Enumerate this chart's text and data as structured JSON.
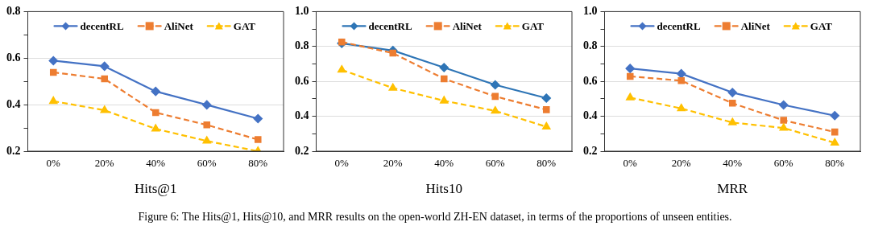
{
  "chart_data": [
    {
      "type": "line",
      "xlabel": "Hits@1",
      "categories": [
        "0%",
        "20%",
        "40%",
        "60%",
        "80%"
      ],
      "series": [
        {
          "name": "decentRL",
          "color": "#4472c4",
          "marker": "diamond",
          "line_style": "solid",
          "values": [
            0.589,
            0.565,
            0.457,
            0.399,
            0.34
          ]
        },
        {
          "name": "AliNet",
          "color": "#ed7d31",
          "marker": "square",
          "line_style": "dashed",
          "values": [
            0.539,
            0.511,
            0.366,
            0.313,
            0.25
          ]
        },
        {
          "name": "GAT",
          "color": "#ffc000",
          "marker": "triangle",
          "line_style": "dashed",
          "values": [
            0.415,
            0.376,
            0.296,
            0.244,
            0.2
          ]
        }
      ],
      "ylim": [
        0.2,
        0.8
      ],
      "yticks": [
        0.2,
        {
          "value": 0.3,
          "label": null
        },
        0.4,
        {
          "value": 0.5,
          "label": null
        },
        0.6,
        {
          "value": 0.7,
          "label": null
        },
        0.8
      ],
      "grid": "y",
      "legend": "top"
    },
    {
      "type": "line",
      "xlabel": "Hits10",
      "categories": [
        "0%",
        "20%",
        "40%",
        "60%",
        "80%"
      ],
      "series": [
        {
          "name": "decentRL",
          "color": "#2e75b6",
          "marker": "diamond",
          "line_style": "solid",
          "values": [
            0.818,
            0.777,
            0.679,
            0.58,
            0.504
          ]
        },
        {
          "name": "AliNet",
          "color": "#ed7d31",
          "marker": "square",
          "line_style": "dashed",
          "values": [
            0.826,
            0.762,
            0.615,
            0.514,
            0.438
          ]
        },
        {
          "name": "GAT",
          "color": "#ffc000",
          "marker": "triangle",
          "line_style": "dashed",
          "values": [
            0.666,
            0.562,
            0.489,
            0.431,
            0.34
          ]
        }
      ],
      "ylim": [
        0.2,
        1.0
      ],
      "yticks": [
        0.2,
        {
          "value": 0.3,
          "label": null
        },
        0.4,
        {
          "value": 0.5,
          "label": null
        },
        0.6,
        {
          "value": 0.7,
          "label": null
        },
        0.8,
        {
          "value": 0.9,
          "label": null
        },
        {
          "value": 1.0,
          "label": "1.0"
        }
      ],
      "grid": "y",
      "legend": "top"
    },
    {
      "type": "line",
      "xlabel": "MRR",
      "categories": [
        "0%",
        "20%",
        "40%",
        "60%",
        "80%"
      ],
      "series": [
        {
          "name": "decentRL",
          "color": "#4472c4",
          "marker": "diamond",
          "line_style": "solid",
          "values": [
            0.674,
            0.644,
            0.536,
            0.465,
            0.404
          ]
        },
        {
          "name": "AliNet",
          "color": "#ed7d31",
          "marker": "square",
          "line_style": "dashed",
          "values": [
            0.629,
            0.604,
            0.475,
            0.377,
            0.31
          ]
        },
        {
          "name": "GAT",
          "color": "#ffc000",
          "marker": "triangle",
          "line_style": "dashed",
          "values": [
            0.507,
            0.445,
            0.364,
            0.333,
            0.248
          ]
        }
      ],
      "ylim": [
        0.2,
        1.0
      ],
      "yticks": [
        0.2,
        {
          "value": 0.3,
          "label": null
        },
        0.4,
        {
          "value": 0.5,
          "label": null
        },
        0.6,
        {
          "value": 0.7,
          "label": null
        },
        0.8,
        {
          "value": 0.9,
          "label": null
        },
        {
          "value": 1.0,
          "label": "1.0"
        }
      ],
      "grid": "y",
      "legend": "top",
      "annotations": [
        "Figure 6: The Hits@1, Hits@10, and MRR results on the open-world ZH-EN dataset, in terms of the proportions of unseen entities."
      ]
    }
  ]
}
